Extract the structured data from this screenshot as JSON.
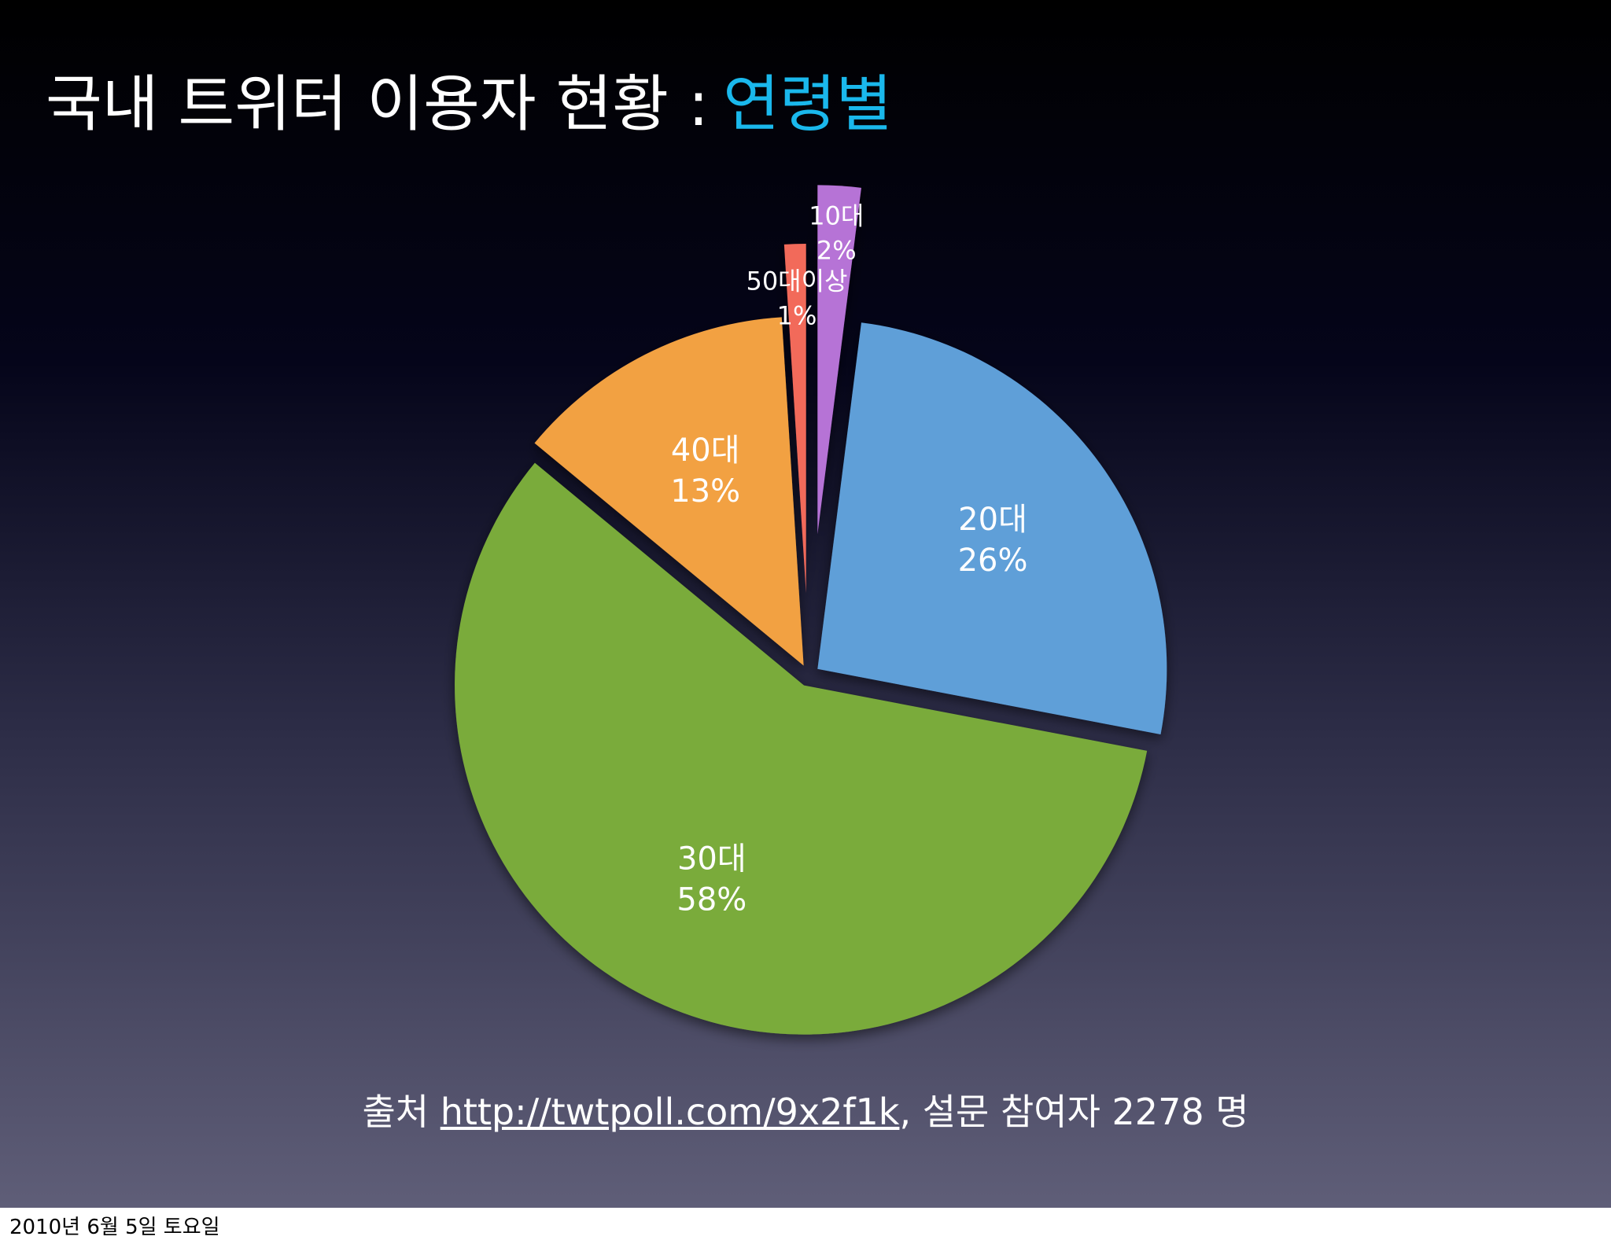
{
  "header": {
    "title": "국내 트위터 이용자 현황 :",
    "title_highlight": "연령별"
  },
  "chart_data": {
    "type": "pie",
    "categories": [
      "10대",
      "20대",
      "30대",
      "40대",
      "50대이상"
    ],
    "values": [
      2,
      26,
      58,
      13,
      1
    ],
    "value_labels": [
      "2%",
      "26%",
      "58%",
      "13%",
      "1%"
    ],
    "colors": [
      "#b673d6",
      "#5e9fd8",
      "#7aab3a",
      "#f2a142",
      "#f26a5a"
    ]
  },
  "source": {
    "prefix": "출처",
    "link": "http://twtpoll.com/9x2f1k",
    "suffix": ", 설문 참여자 2278 명"
  },
  "footer": {
    "date": "2010년 6월 5일 토요일"
  }
}
